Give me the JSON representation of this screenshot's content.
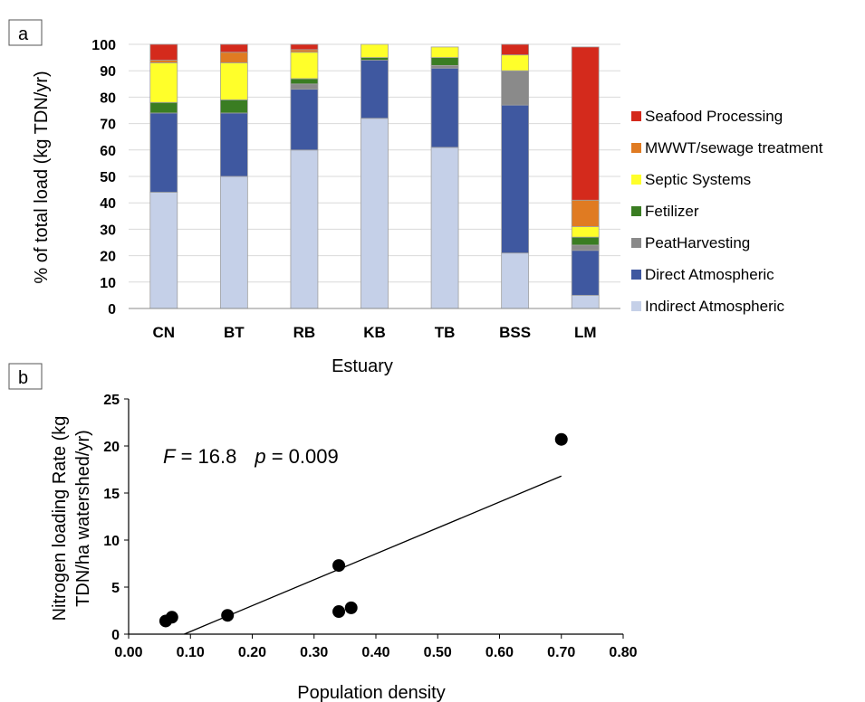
{
  "chart_data": [
    {
      "panel": "a",
      "type": "bar",
      "stacked": true,
      "xlabel": "Estuary",
      "ylabel": "% of total load (kg TDN/yr)",
      "ylim": [
        0,
        100
      ],
      "yticks": [
        "0",
        "10",
        "20",
        "30",
        "40",
        "50",
        "60",
        "70",
        "80",
        "90",
        "100"
      ],
      "categories": [
        "CN",
        "BT",
        "RB",
        "KB",
        "TB",
        "BSS",
        "LM"
      ],
      "legend_position": "right",
      "series": [
        {
          "name": "Indirect Atmospheric",
          "color": "#c5d0e8",
          "values": [
            44,
            50,
            60,
            72,
            61,
            21,
            5
          ]
        },
        {
          "name": "Direct Atmospheric",
          "color": "#3f58a0",
          "values": [
            30,
            24,
            23,
            22,
            30,
            56,
            17
          ]
        },
        {
          "name": "PeatHarvesting",
          "color": "#8a8a8a",
          "values": [
            0,
            0,
            2,
            0,
            1,
            13,
            2
          ]
        },
        {
          "name": "Fetilizer",
          "color": "#3a7d22",
          "values": [
            4,
            5,
            2,
            1,
            3,
            0,
            3
          ]
        },
        {
          "name": "Septic Systems",
          "color": "#ffff2a",
          "values": [
            15,
            14,
            10,
            5,
            4,
            6,
            4
          ]
        },
        {
          "name": "MWWT/sewage treatment",
          "color": "#e07b22",
          "values": [
            1,
            4,
            1,
            0,
            0,
            0,
            10
          ]
        },
        {
          "name": "Seafood Processing",
          "color": "#d42a1c",
          "values": [
            6,
            3,
            2,
            0,
            0,
            4,
            58
          ]
        }
      ],
      "legend_order": [
        "Seafood Processing",
        "MWWT/sewage treatment",
        "Septic Systems",
        "Fetilizer",
        "PeatHarvesting",
        "Direct Atmospheric",
        "Indirect Atmospheric"
      ]
    },
    {
      "panel": "b",
      "type": "scatter",
      "xlabel": "Population density",
      "ylabel_line1": "Nitrogen loading Rate (kg",
      "ylabel_line2": "TDN/ha watershed/yr)",
      "xlim": [
        0,
        0.8
      ],
      "ylim": [
        0,
        25
      ],
      "xticks": [
        "0.00",
        "0.10",
        "0.20",
        "0.30",
        "0.40",
        "0.50",
        "0.60",
        "0.70",
        "0.80"
      ],
      "yticks": [
        "0",
        "5",
        "10",
        "15",
        "20",
        "25"
      ],
      "points": [
        {
          "x": 0.06,
          "y": 1.4
        },
        {
          "x": 0.07,
          "y": 1.8
        },
        {
          "x": 0.16,
          "y": 2.0
        },
        {
          "x": 0.34,
          "y": 7.3
        },
        {
          "x": 0.34,
          "y": 2.4
        },
        {
          "x": 0.36,
          "y": 2.8
        },
        {
          "x": 0.7,
          "y": 20.7
        }
      ],
      "fit_line": {
        "x0": 0.09,
        "y0": 0.0,
        "x1": 0.7,
        "y1": 16.8
      },
      "annotation": {
        "F_symbol": "F",
        "F_text": " = 16.8",
        "p_symbol": "p",
        "p_text": " = 0.009"
      }
    }
  ]
}
